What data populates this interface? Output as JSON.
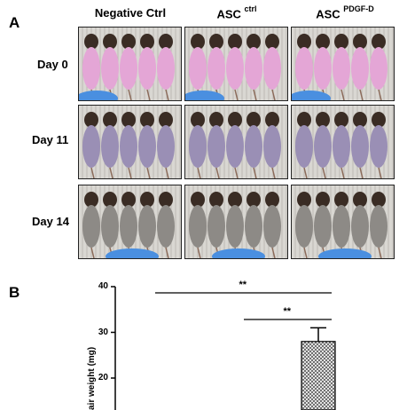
{
  "panel_a": {
    "letter": "A",
    "columns": [
      {
        "label": "Negative Ctrl",
        "sup": ""
      },
      {
        "label": "ASC ",
        "sup": "ctrl"
      },
      {
        "label": "ASC ",
        "sup": "PDGF-D"
      }
    ],
    "rows": [
      "Day 0",
      "Day 11",
      "Day 14"
    ],
    "fur_colors": {
      "Day 0": "#e4a6d6",
      "Day 11": "#9a8fb5",
      "Day 14": "#8d8a86"
    }
  },
  "panel_b": {
    "letter": "B",
    "ylabel": "air weight (mg)",
    "significance": [
      "**",
      "**"
    ],
    "chart_data": {
      "type": "bar",
      "ylabel": "air weight (mg)",
      "ylim": [
        15,
        40
      ],
      "yticks": [
        20,
        30,
        40
      ],
      "bars": [
        {
          "value": 28,
          "error": 3,
          "pattern": "crosshatch"
        }
      ]
    }
  }
}
